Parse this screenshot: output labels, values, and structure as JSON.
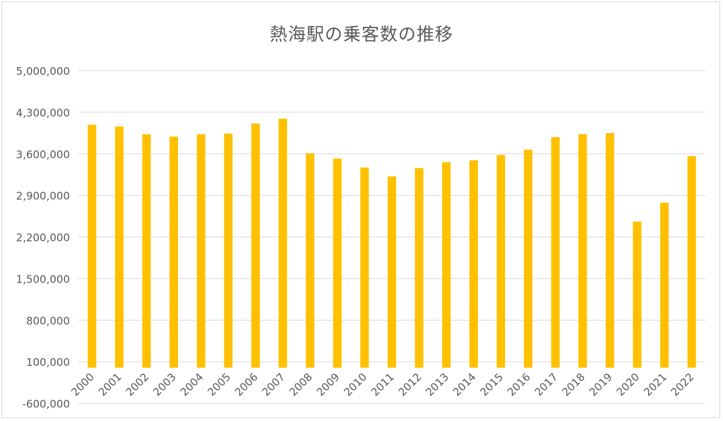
{
  "chart_data": {
    "type": "bar",
    "title": "熱海駅の乗客数の推移",
    "xlabel": "",
    "ylabel": "",
    "categories": [
      "2000",
      "2001",
      "2002",
      "2003",
      "2004",
      "2005",
      "2006",
      "2007",
      "2008",
      "2009",
      "2010",
      "2011",
      "2012",
      "2013",
      "2014",
      "2015",
      "2016",
      "2017",
      "2018",
      "2019",
      "2020",
      "2021",
      "2022"
    ],
    "values": [
      4090000,
      4060000,
      3930000,
      3890000,
      3930000,
      3940000,
      4110000,
      4190000,
      3610000,
      3520000,
      3370000,
      3220000,
      3360000,
      3460000,
      3490000,
      3580000,
      3670000,
      3880000,
      3930000,
      3950000,
      2460000,
      2780000,
      3560000
    ],
    "ylim": [
      -600000,
      5000000
    ],
    "yticks": [
      "5,000,000",
      "4,300,000",
      "3,600,000",
      "2,900,000",
      "2,200,000",
      "1,500,000",
      "800,000",
      "100,000",
      "-600,000"
    ],
    "ytick_values": [
      5000000,
      4300000,
      3600000,
      2900000,
      2200000,
      1500000,
      800000,
      100000,
      -600000
    ],
    "bar_color": "#FFC000",
    "grid": true,
    "legend": "none"
  }
}
